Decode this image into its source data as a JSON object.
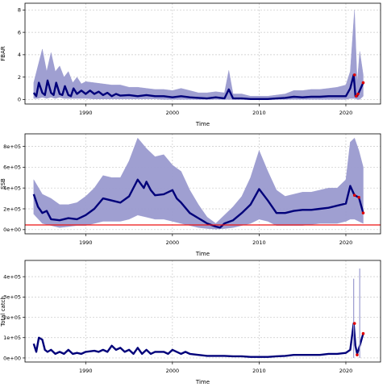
{
  "chart_data": [
    {
      "type": "line",
      "ylabel": "FBAR",
      "xlabel": "Time",
      "xlim": [
        1983,
        2024
      ],
      "ylim": [
        -0.4,
        8.6
      ],
      "xticks": [
        1990,
        2000,
        2010,
        2020
      ],
      "yticks": [
        0,
        2,
        4,
        6,
        8
      ],
      "ytick_labels": [
        "0",
        "2",
        "4",
        "6",
        "8"
      ],
      "grid": true,
      "series": [
        {
          "kind": "band",
          "color": "#9a9acf",
          "x": [
            1984.0,
            1984.5,
            1985.0,
            1985.5,
            1986.0,
            1986.5,
            1987.0,
            1987.5,
            1988.0,
            1988.5,
            1989.0,
            1989.5,
            1990.0,
            1991.0,
            1992.0,
            1993.0,
            1994.0,
            1995.0,
            1996.0,
            1997.0,
            1998.0,
            1999.0,
            2000.0,
            2001.0,
            2002.0,
            2003.0,
            2004.0,
            2005.0,
            2006.0,
            2006.5,
            2007.0,
            2008.0,
            2009.0,
            2010.0,
            2011.0,
            2012.0,
            2013.0,
            2014.0,
            2015.0,
            2016.0,
            2017.0,
            2018.0,
            2019.0,
            2020.0,
            2020.5,
            2021.0,
            2021.3,
            2021.6,
            2022.0
          ],
          "lower": [
            0.1,
            0.1,
            0.2,
            0.1,
            0.2,
            0.1,
            0.2,
            0.1,
            0.1,
            0.1,
            0.1,
            0.1,
            0.1,
            0.05,
            0.05,
            0.05,
            0.05,
            0.05,
            0.05,
            0.05,
            0.05,
            0.0,
            0.0,
            0.0,
            0.0,
            0.0,
            0.0,
            0.0,
            0.0,
            0.0,
            0.0,
            0.0,
            0.0,
            0.0,
            0.0,
            0.0,
            0.0,
            0.0,
            0.0,
            0.0,
            0.0,
            0.0,
            0.0,
            0.0,
            0.1,
            0.1,
            0.0,
            0.0,
            0.3
          ],
          "upper": [
            1.5,
            3.0,
            4.5,
            2.5,
            4.2,
            2.5,
            3.0,
            2.0,
            2.5,
            1.5,
            2.0,
            1.4,
            1.6,
            1.5,
            1.4,
            1.3,
            1.3,
            1.1,
            1.1,
            1.0,
            0.9,
            0.9,
            0.8,
            1.0,
            0.8,
            0.6,
            0.6,
            0.7,
            0.6,
            2.6,
            0.5,
            0.5,
            0.3,
            0.3,
            0.3,
            0.4,
            0.5,
            0.8,
            0.8,
            0.9,
            0.9,
            1.0,
            1.1,
            1.3,
            2.5,
            8.0,
            1.5,
            4.3,
            2.2
          ]
        },
        {
          "kind": "line",
          "color": "#00007a",
          "x": [
            1984.0,
            1984.3,
            1984.6,
            1985.0,
            1985.3,
            1985.6,
            1986.0,
            1986.3,
            1986.6,
            1987.0,
            1987.3,
            1987.6,
            1988.0,
            1988.3,
            1988.6,
            1989.0,
            1989.5,
            1990.0,
            1990.5,
            1991.0,
            1991.5,
            1992.0,
            1992.5,
            1993.0,
            1993.5,
            1994.0,
            1995.0,
            1996.0,
            1997.0,
            1998.0,
            1999.0,
            2000.0,
            2001.0,
            2002.0,
            2003.0,
            2004.0,
            2005.0,
            2006.0,
            2006.5,
            2007.0,
            2008.0,
            2009.0,
            2010.0,
            2011.0,
            2012.0,
            2013.0,
            2014.0,
            2015.0,
            2016.0,
            2017.0,
            2018.0,
            2019.0,
            2020.0,
            2020.5,
            2020.9,
            2021.1,
            2021.3,
            2021.6,
            2022.0
          ],
          "y": [
            0.6,
            0.3,
            1.5,
            0.6,
            0.4,
            1.7,
            0.6,
            0.4,
            1.5,
            0.5,
            0.4,
            1.2,
            0.4,
            0.3,
            1.0,
            0.5,
            0.8,
            0.5,
            0.8,
            0.5,
            0.7,
            0.4,
            0.6,
            0.3,
            0.5,
            0.35,
            0.4,
            0.3,
            0.4,
            0.3,
            0.3,
            0.2,
            0.3,
            0.2,
            0.15,
            0.1,
            0.2,
            0.1,
            0.9,
            0.1,
            0.1,
            0.05,
            0.05,
            0.05,
            0.1,
            0.15,
            0.25,
            0.2,
            0.25,
            0.25,
            0.3,
            0.3,
            0.3,
            1.0,
            2.2,
            0.3,
            0.3,
            0.8,
            1.5
          ]
        }
      ],
      "red_points": [
        [
          2021.0,
          2.2
        ],
        [
          2021.2,
          0.3
        ],
        [
          2021.4,
          0.5
        ],
        [
          2022.0,
          1.5
        ]
      ]
    },
    {
      "type": "line",
      "ylabel": "SSB",
      "xlabel": "Time",
      "xlim": [
        1983,
        2024
      ],
      "ylim": [
        -40000,
        920000
      ],
      "xticks": [
        1990,
        2000,
        2010,
        2020
      ],
      "yticks": [
        0,
        200000,
        400000,
        600000,
        800000
      ],
      "ytick_labels": [
        "0e+00",
        "2e+05",
        "4e+05",
        "6e+05",
        "8e+05"
      ],
      "grid": true,
      "hline": {
        "y": 45000,
        "color": "#ee1111"
      },
      "series": [
        {
          "kind": "band",
          "color": "#9a9acf",
          "x": [
            1984.0,
            1985.0,
            1986.0,
            1987.0,
            1988.0,
            1989.0,
            1990.0,
            1991.0,
            1992.0,
            1993.0,
            1994.0,
            1995.0,
            1996.0,
            1997.0,
            1998.0,
            1999.0,
            2000.0,
            2001.0,
            2002.0,
            2003.0,
            2004.0,
            2005.0,
            2006.0,
            2007.0,
            2008.0,
            2009.0,
            2010.0,
            2011.0,
            2012.0,
            2013.0,
            2014.0,
            2015.0,
            2016.0,
            2017.0,
            2018.0,
            2019.0,
            2020.0,
            2020.5,
            2021.0,
            2021.5,
            2022.0
          ],
          "lower": [
            150000,
            60000,
            40000,
            20000,
            30000,
            40000,
            40000,
            60000,
            80000,
            80000,
            80000,
            100000,
            140000,
            120000,
            100000,
            100000,
            80000,
            60000,
            40000,
            20000,
            10000,
            5000,
            10000,
            20000,
            40000,
            60000,
            100000,
            80000,
            40000,
            40000,
            40000,
            40000,
            50000,
            60000,
            60000,
            60000,
            80000,
            100000,
            100000,
            80000,
            60000
          ],
          "upper": [
            480000,
            340000,
            300000,
            240000,
            240000,
            260000,
            320000,
            400000,
            520000,
            500000,
            500000,
            660000,
            880000,
            780000,
            700000,
            720000,
            620000,
            560000,
            380000,
            240000,
            120000,
            60000,
            140000,
            220000,
            320000,
            500000,
            760000,
            560000,
            380000,
            320000,
            340000,
            360000,
            360000,
            380000,
            400000,
            400000,
            480000,
            840000,
            880000,
            760000,
            600000
          ]
        },
        {
          "kind": "line",
          "color": "#00007a",
          "x": [
            1984.0,
            1984.5,
            1985.0,
            1985.5,
            1986.0,
            1987.0,
            1988.0,
            1989.0,
            1990.0,
            1991.0,
            1992.0,
            1993.0,
            1994.0,
            1995.0,
            1996.0,
            1996.7,
            1997.0,
            1997.5,
            1998.0,
            1999.0,
            2000.0,
            2000.5,
            2001.0,
            2002.0,
            2003.0,
            2004.0,
            2005.0,
            2005.5,
            2006.0,
            2007.0,
            2008.0,
            2009.0,
            2010.0,
            2011.0,
            2012.0,
            2013.0,
            2014.0,
            2015.0,
            2016.0,
            2017.0,
            2018.0,
            2019.0,
            2020.0,
            2020.5,
            2021.0,
            2021.5,
            2022.0
          ],
          "y": [
            340000,
            220000,
            160000,
            180000,
            100000,
            90000,
            110000,
            100000,
            140000,
            200000,
            300000,
            280000,
            260000,
            320000,
            480000,
            400000,
            460000,
            380000,
            330000,
            340000,
            380000,
            300000,
            260000,
            160000,
            110000,
            60000,
            30000,
            20000,
            60000,
            90000,
            160000,
            240000,
            390000,
            280000,
            160000,
            160000,
            180000,
            190000,
            190000,
            200000,
            210000,
            230000,
            250000,
            420000,
            330000,
            310000,
            160000
          ]
        }
      ],
      "red_points": [
        [
          2021.0,
          330000
        ],
        [
          2021.5,
          310000
        ],
        [
          2022.0,
          160000
        ]
      ]
    },
    {
      "type": "line",
      "ylabel": "Total catch",
      "xlabel": "Time",
      "xlim": [
        1983,
        2024
      ],
      "ylim": [
        -20000,
        480000
      ],
      "xticks": [
        1990,
        2000,
        2010,
        2020
      ],
      "yticks": [
        0,
        100000,
        200000,
        300000,
        400000
      ],
      "ytick_labels": [
        "0e+00",
        "1e+05",
        "2e+05",
        "3e+05",
        "4e+05"
      ],
      "grid": true,
      "series": [
        {
          "kind": "line",
          "color": "#00007a",
          "x": [
            1984.0,
            1984.3,
            1984.6,
            1985.0,
            1985.3,
            1985.6,
            1986.0,
            1986.5,
            1987.0,
            1987.5,
            1988.0,
            1988.5,
            1989.0,
            1989.5,
            1990.0,
            1991.0,
            1991.5,
            1992.0,
            1992.5,
            1993.0,
            1993.5,
            1994.0,
            1994.5,
            1995.0,
            1995.5,
            1996.0,
            1996.5,
            1997.0,
            1997.5,
            1998.0,
            1999.0,
            1999.5,
            2000.0,
            2001.0,
            2001.5,
            2002.0,
            2003.0,
            2004.0,
            2005.0,
            2006.0,
            2007.0,
            2008.0,
            2009.0,
            2010.0,
            2011.0,
            2012.0,
            2013.0,
            2014.0,
            2015.0,
            2016.0,
            2017.0,
            2018.0,
            2019.0,
            2020.0,
            2020.5,
            2020.9,
            2021.1,
            2021.3,
            2021.6,
            2022.0
          ],
          "y": [
            70000,
            30000,
            100000,
            90000,
            40000,
            30000,
            40000,
            20000,
            30000,
            20000,
            40000,
            20000,
            25000,
            20000,
            30000,
            35000,
            30000,
            40000,
            30000,
            60000,
            40000,
            50000,
            30000,
            40000,
            20000,
            50000,
            20000,
            40000,
            20000,
            30000,
            30000,
            20000,
            40000,
            20000,
            30000,
            20000,
            15000,
            10000,
            10000,
            10000,
            8000,
            8000,
            5000,
            5000,
            5000,
            8000,
            10000,
            15000,
            15000,
            15000,
            15000,
            20000,
            20000,
            25000,
            40000,
            170000,
            60000,
            20000,
            60000,
            120000
          ]
        },
        {
          "kind": "spike",
          "color": "#9a9acf",
          "x": [
            2020.9,
            2021.6
          ],
          "top": [
            390000,
            440000
          ]
        }
      ],
      "red_points": [
        [
          2021.0,
          170000
        ],
        [
          2021.3,
          15000
        ],
        [
          2022.0,
          120000
        ]
      ]
    }
  ]
}
